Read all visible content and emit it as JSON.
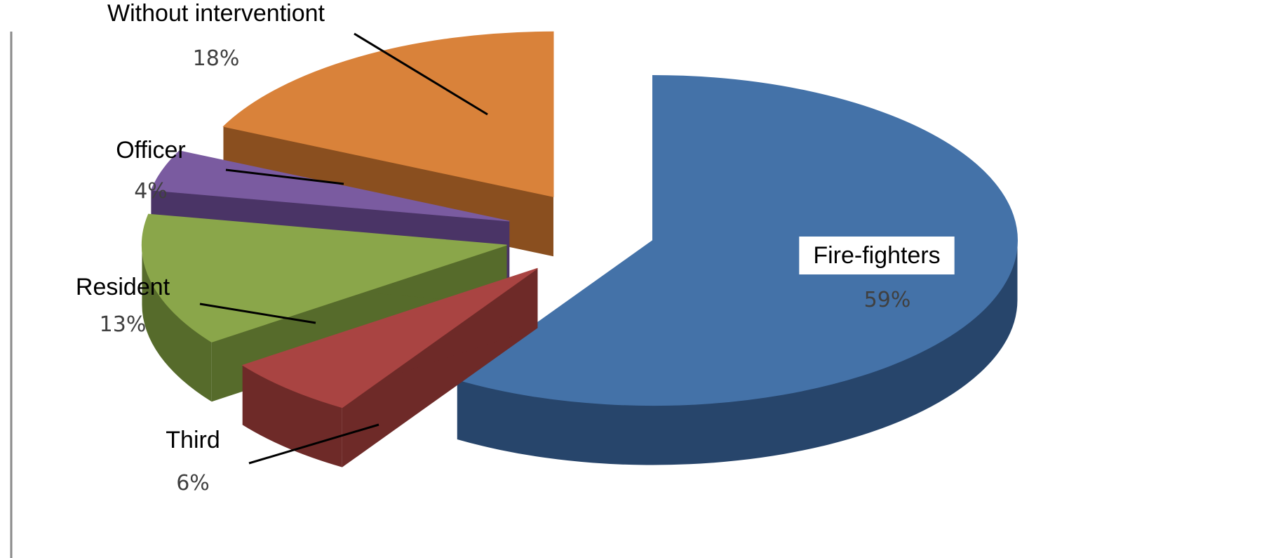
{
  "chart_data": {
    "type": "pie",
    "style": "3d-exploded",
    "categories": [
      "Fire-fighters",
      "Third",
      "Resident",
      "Officer",
      "Without interventiont"
    ],
    "values": [
      59,
      6,
      13,
      4,
      18
    ],
    "value_labels": [
      "59%",
      "6%",
      "13%",
      "4%",
      "18%"
    ],
    "unit": "%",
    "colors": [
      "#4472A8",
      "#A94442",
      "#8AA64A",
      "#7A5BA0",
      "#D9823A"
    ],
    "side_colors": [
      "#27456B",
      "#6E2A28",
      "#566B2B",
      "#4A3466",
      "#8A4F1F"
    ],
    "legend": "none"
  }
}
